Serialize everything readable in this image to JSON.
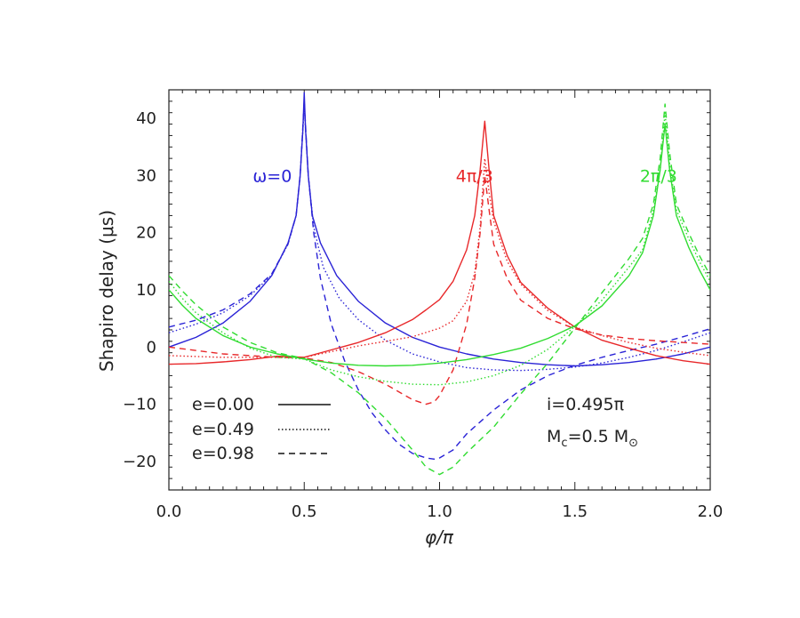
{
  "chart_data": {
    "type": "line",
    "title": "",
    "xlabel": "φ/π",
    "ylabel": "Shapiro delay (μs)",
    "xlim": [
      0.0,
      2.0
    ],
    "ylim": [
      -25,
      45
    ],
    "xticks": [
      0.0,
      0.5,
      1.0,
      1.5,
      2.0
    ],
    "xtick_labels": [
      "0.0",
      "0.5",
      "1.0",
      "1.5",
      "2.0"
    ],
    "yticks": [
      -20,
      -10,
      0,
      10,
      20,
      30,
      40
    ],
    "ytick_labels": [
      "−20",
      "−10",
      "0",
      "10",
      "20",
      "30",
      "40"
    ],
    "grid": false,
    "parameters": {
      "inclination_over_pi": 0.495,
      "companion_mass_msun": 0.5
    },
    "legend": {
      "placement": "bottom-left",
      "entries": [
        {
          "label": "e=0.00",
          "eccentricity": 0.0,
          "style": "solid"
        },
        {
          "label": "e=0.49",
          "eccentricity": 0.49,
          "style": "dotted"
        },
        {
          "label": "e=0.98",
          "eccentricity": 0.98,
          "style": "dashed"
        }
      ]
    },
    "groups": [
      {
        "label": "ω=0",
        "omega_over_pi": 0.0,
        "color": "#2a23d6",
        "peak_x": 0.5,
        "label_pos": {
          "x": 0.31,
          "y": 30
        }
      },
      {
        "label": "4π/3",
        "omega_over_pi": 1.3333,
        "color": "#e8282a",
        "peak_x": 1.1667,
        "label_pos": {
          "x": 1.06,
          "y": 30
        }
      },
      {
        "label": "2π/3",
        "omega_over_pi": 0.6667,
        "color": "#31dc31",
        "peak_x": 1.8333,
        "label_pos": {
          "x": 1.74,
          "y": 30
        }
      }
    ],
    "series": [
      {
        "group": 0,
        "style": "solid",
        "points": [
          [
            0,
            0
          ],
          [
            0.1,
            1.7
          ],
          [
            0.2,
            4.2
          ],
          [
            0.3,
            8
          ],
          [
            0.38,
            12.5
          ],
          [
            0.44,
            18.2
          ],
          [
            0.47,
            23
          ],
          [
            0.485,
            30
          ],
          [
            0.495,
            38
          ],
          [
            0.5,
            44.5
          ],
          [
            0.505,
            38
          ],
          [
            0.515,
            30
          ],
          [
            0.53,
            23
          ],
          [
            0.56,
            18.2
          ],
          [
            0.62,
            12.5
          ],
          [
            0.7,
            8
          ],
          [
            0.8,
            4.2
          ],
          [
            0.9,
            1.7
          ],
          [
            1.0,
            0
          ],
          [
            1.1,
            -1.2
          ],
          [
            1.2,
            -2.1
          ],
          [
            1.3,
            -2.7
          ],
          [
            1.4,
            -3.1
          ],
          [
            1.5,
            -3.3
          ],
          [
            1.6,
            -3.1
          ],
          [
            1.7,
            -2.7
          ],
          [
            1.8,
            -2.1
          ],
          [
            1.9,
            -1.2
          ],
          [
            2.0,
            0
          ]
        ]
      },
      {
        "group": 0,
        "style": "dotted",
        "points": [
          [
            0,
            2.5
          ],
          [
            0.1,
            4
          ],
          [
            0.2,
            6
          ],
          [
            0.3,
            9
          ],
          [
            0.38,
            12.6
          ],
          [
            0.44,
            18
          ],
          [
            0.47,
            23
          ],
          [
            0.485,
            30
          ],
          [
            0.5,
            42
          ],
          [
            0.515,
            30
          ],
          [
            0.535,
            21
          ],
          [
            0.57,
            14
          ],
          [
            0.63,
            8.5
          ],
          [
            0.7,
            4.8
          ],
          [
            0.8,
            1.2
          ],
          [
            0.9,
            -1.2
          ],
          [
            1.0,
            -2.6
          ],
          [
            1.1,
            -3.6
          ],
          [
            1.2,
            -4
          ],
          [
            1.3,
            -4.1
          ],
          [
            1.4,
            -3.9
          ],
          [
            1.5,
            -3.5
          ],
          [
            1.6,
            -2.8
          ],
          [
            1.7,
            -1.8
          ],
          [
            1.8,
            -0.6
          ],
          [
            1.9,
            0.9
          ],
          [
            2.0,
            2.5
          ]
        ]
      },
      {
        "group": 0,
        "style": "dashed",
        "points": [
          [
            0,
            3.5
          ],
          [
            0.1,
            4.7
          ],
          [
            0.2,
            6.5
          ],
          [
            0.3,
            9.3
          ],
          [
            0.38,
            12.8
          ],
          [
            0.44,
            18
          ],
          [
            0.47,
            23
          ],
          [
            0.485,
            30
          ],
          [
            0.5,
            43
          ],
          [
            0.515,
            30
          ],
          [
            0.535,
            20
          ],
          [
            0.56,
            12
          ],
          [
            0.6,
            4
          ],
          [
            0.65,
            -2.5
          ],
          [
            0.7,
            -7.5
          ],
          [
            0.75,
            -11.5
          ],
          [
            0.8,
            -14.5
          ],
          [
            0.85,
            -17
          ],
          [
            0.9,
            -18.6
          ],
          [
            0.95,
            -19.4
          ],
          [
            0.98,
            -19.6
          ],
          [
            1.0,
            -19.4
          ],
          [
            1.05,
            -18
          ],
          [
            1.1,
            -15.2
          ],
          [
            1.2,
            -11
          ],
          [
            1.3,
            -7.5
          ],
          [
            1.4,
            -5
          ],
          [
            1.5,
            -3.2
          ],
          [
            1.6,
            -1.8
          ],
          [
            1.7,
            -0.6
          ],
          [
            1.8,
            0.5
          ],
          [
            1.9,
            1.8
          ],
          [
            2.0,
            3.2
          ]
        ]
      },
      {
        "group": 1,
        "style": "solid",
        "points": [
          [
            0,
            -3
          ],
          [
            0.1,
            -2.9
          ],
          [
            0.2,
            -2.6
          ],
          [
            0.3,
            -2.2
          ],
          [
            0.4,
            -1.6
          ],
          [
            0.5,
            -1.8
          ],
          [
            0.6,
            -0.5
          ],
          [
            0.7,
            0.8
          ],
          [
            0.8,
            2.5
          ],
          [
            0.9,
            4.8
          ],
          [
            0.95,
            6.5
          ],
          [
            1.0,
            8.3
          ],
          [
            1.05,
            11.5
          ],
          [
            1.1,
            17
          ],
          [
            1.13,
            23
          ],
          [
            1.15,
            31
          ],
          [
            1.167,
            39.5
          ],
          [
            1.183,
            31
          ],
          [
            1.2,
            23
          ],
          [
            1.25,
            16
          ],
          [
            1.3,
            11.3
          ],
          [
            1.4,
            6.8
          ],
          [
            1.5,
            3.5
          ],
          [
            1.6,
            1.2
          ],
          [
            1.7,
            -0.2
          ],
          [
            1.8,
            -1.5
          ],
          [
            1.9,
            -2.4
          ],
          [
            2.0,
            -3
          ]
        ]
      },
      {
        "group": 1,
        "style": "dotted",
        "points": [
          [
            0,
            -1.5
          ],
          [
            0.2,
            -1.8
          ],
          [
            0.4,
            -1.8
          ],
          [
            0.5,
            -1.8
          ],
          [
            0.6,
            -0.8
          ],
          [
            0.7,
            0.2
          ],
          [
            0.8,
            1
          ],
          [
            0.9,
            1.8
          ],
          [
            1.0,
            3.3
          ],
          [
            1.05,
            4.6
          ],
          [
            1.1,
            8
          ],
          [
            1.13,
            13
          ],
          [
            1.15,
            21
          ],
          [
            1.167,
            33
          ],
          [
            1.183,
            27
          ],
          [
            1.2,
            22
          ],
          [
            1.25,
            15
          ],
          [
            1.3,
            11
          ],
          [
            1.4,
            6.4
          ],
          [
            1.5,
            3.5
          ],
          [
            1.6,
            2
          ],
          [
            1.7,
            0.8
          ],
          [
            1.8,
            -0.2
          ],
          [
            1.9,
            -0.9
          ],
          [
            2.0,
            -1.5
          ]
        ]
      },
      {
        "group": 1,
        "style": "dashed",
        "points": [
          [
            0,
            0
          ],
          [
            0.2,
            -1.2
          ],
          [
            0.4,
            -1.8
          ],
          [
            0.5,
            -1.9
          ],
          [
            0.6,
            -2.7
          ],
          [
            0.7,
            -4.3
          ],
          [
            0.8,
            -6.5
          ],
          [
            0.9,
            -9.2
          ],
          [
            0.95,
            -10
          ],
          [
            0.98,
            -9.6
          ],
          [
            1.0,
            -8.5
          ],
          [
            1.05,
            -4
          ],
          [
            1.1,
            4
          ],
          [
            1.13,
            12
          ],
          [
            1.15,
            20
          ],
          [
            1.167,
            30
          ],
          [
            1.183,
            24
          ],
          [
            1.2,
            18
          ],
          [
            1.25,
            12
          ],
          [
            1.3,
            8.2
          ],
          [
            1.4,
            5
          ],
          [
            1.5,
            3.2
          ],
          [
            1.6,
            2.1
          ],
          [
            1.7,
            1.5
          ],
          [
            1.8,
            1.1
          ],
          [
            1.9,
            0.8
          ],
          [
            2.0,
            0.5
          ]
        ]
      },
      {
        "group": 2,
        "style": "solid",
        "points": [
          [
            0,
            10
          ],
          [
            0.05,
            7.3
          ],
          [
            0.1,
            5
          ],
          [
            0.2,
            2
          ],
          [
            0.3,
            0
          ],
          [
            0.4,
            -1.2
          ],
          [
            0.5,
            -2.1
          ],
          [
            0.6,
            -2.8
          ],
          [
            0.7,
            -3.2
          ],
          [
            0.8,
            -3.3
          ],
          [
            0.9,
            -3.2
          ],
          [
            1.0,
            -2.8
          ],
          [
            1.1,
            -2.2
          ],
          [
            1.2,
            -1.3
          ],
          [
            1.3,
            -0.2
          ],
          [
            1.4,
            1.5
          ],
          [
            1.5,
            3.7
          ],
          [
            1.6,
            7.2
          ],
          [
            1.7,
            12.5
          ],
          [
            1.75,
            16.5
          ],
          [
            1.79,
            23
          ],
          [
            1.815,
            31
          ],
          [
            1.833,
            39
          ],
          [
            1.85,
            31
          ],
          [
            1.875,
            23
          ],
          [
            1.92,
            17.5
          ],
          [
            1.96,
            13.5
          ],
          [
            2.0,
            10
          ]
        ]
      },
      {
        "group": 2,
        "style": "dotted",
        "points": [
          [
            0,
            11.5
          ],
          [
            0.05,
            8.5
          ],
          [
            0.1,
            6
          ],
          [
            0.2,
            2.5
          ],
          [
            0.3,
            -0.2
          ],
          [
            0.4,
            -1.8
          ],
          [
            0.5,
            -2.1
          ],
          [
            0.6,
            -4
          ],
          [
            0.7,
            -5.2
          ],
          [
            0.8,
            -6
          ],
          [
            0.9,
            -6.5
          ],
          [
            1.0,
            -6.6
          ],
          [
            1.1,
            -6.1
          ],
          [
            1.2,
            -5
          ],
          [
            1.3,
            -3.2
          ],
          [
            1.4,
            -0.4
          ],
          [
            1.5,
            3.6
          ],
          [
            1.6,
            8.2
          ],
          [
            1.7,
            14
          ],
          [
            1.75,
            17
          ],
          [
            1.79,
            24
          ],
          [
            1.815,
            31
          ],
          [
            1.833,
            41
          ],
          [
            1.85,
            32
          ],
          [
            1.875,
            24
          ],
          [
            1.92,
            19
          ],
          [
            1.96,
            15
          ],
          [
            2.0,
            11.5
          ]
        ]
      },
      {
        "group": 2,
        "style": "dashed",
        "points": [
          [
            0,
            12.5
          ],
          [
            0.05,
            9.8
          ],
          [
            0.1,
            7.4
          ],
          [
            0.2,
            3.5
          ],
          [
            0.3,
            0.8
          ],
          [
            0.4,
            -1
          ],
          [
            0.5,
            -2
          ],
          [
            0.6,
            -4.5
          ],
          [
            0.7,
            -8
          ],
          [
            0.8,
            -12.5
          ],
          [
            0.9,
            -18
          ],
          [
            0.95,
            -21
          ],
          [
            1.0,
            -22.3
          ],
          [
            1.05,
            -21
          ],
          [
            1.1,
            -18.5
          ],
          [
            1.2,
            -14
          ],
          [
            1.3,
            -8.2
          ],
          [
            1.4,
            -2.8
          ],
          [
            1.5,
            3.3
          ],
          [
            1.6,
            9.5
          ],
          [
            1.7,
            15.5
          ],
          [
            1.75,
            19
          ],
          [
            1.79,
            25
          ],
          [
            1.815,
            33
          ],
          [
            1.833,
            42.5
          ],
          [
            1.85,
            34
          ],
          [
            1.875,
            25
          ],
          [
            1.92,
            20
          ],
          [
            1.96,
            16
          ],
          [
            2.0,
            12.5
          ]
        ]
      }
    ],
    "annotations": {
      "inclination": "i=0.495π",
      "mass_main": "M",
      "mass_sub": "c",
      "mass_rest": "=0.5 M",
      "mass_symbol": "⊙"
    }
  }
}
